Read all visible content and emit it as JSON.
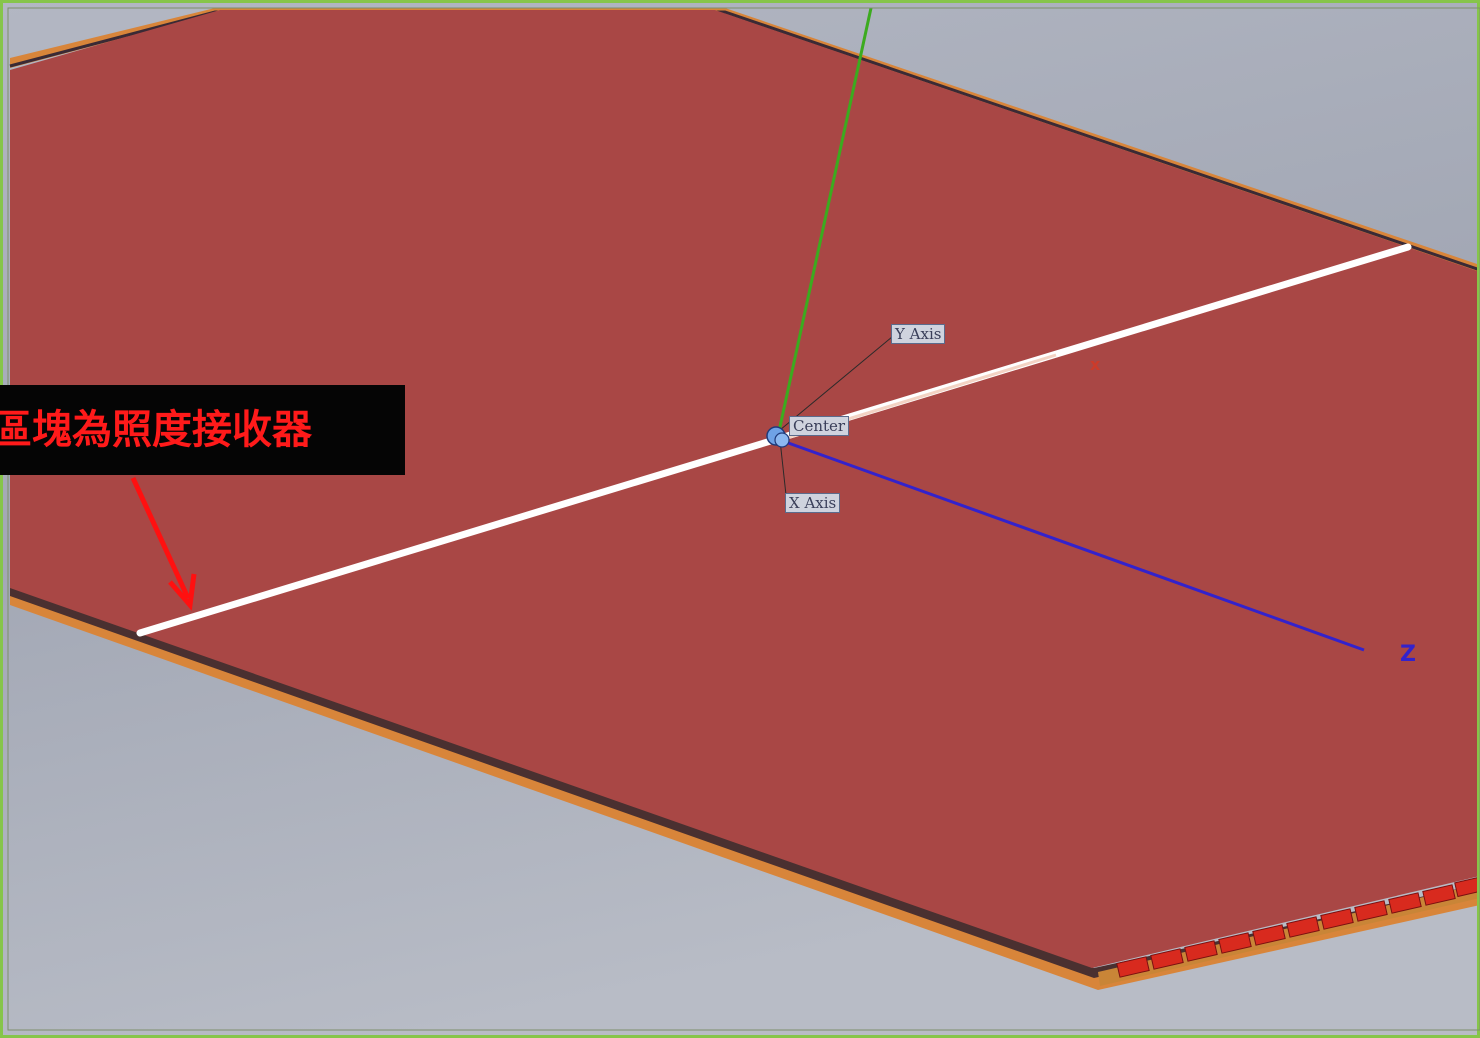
{
  "annotation": {
    "text": "區塊為照度接收器"
  },
  "axis_tags": {
    "y_axis": "Y Axis",
    "center": "Center",
    "x_axis": "X Axis"
  },
  "axis_letters": {
    "z": "Z"
  },
  "colors": {
    "background": "#a4a9b6",
    "plate": "#a94745",
    "plate_edge": "#d8853a",
    "receiver_line": "#ffffff",
    "y_axis_line": "#3cab1f",
    "z_axis_line": "#3322cc",
    "annotation_text": "#ff1a1a",
    "frame": "#86c54a"
  }
}
